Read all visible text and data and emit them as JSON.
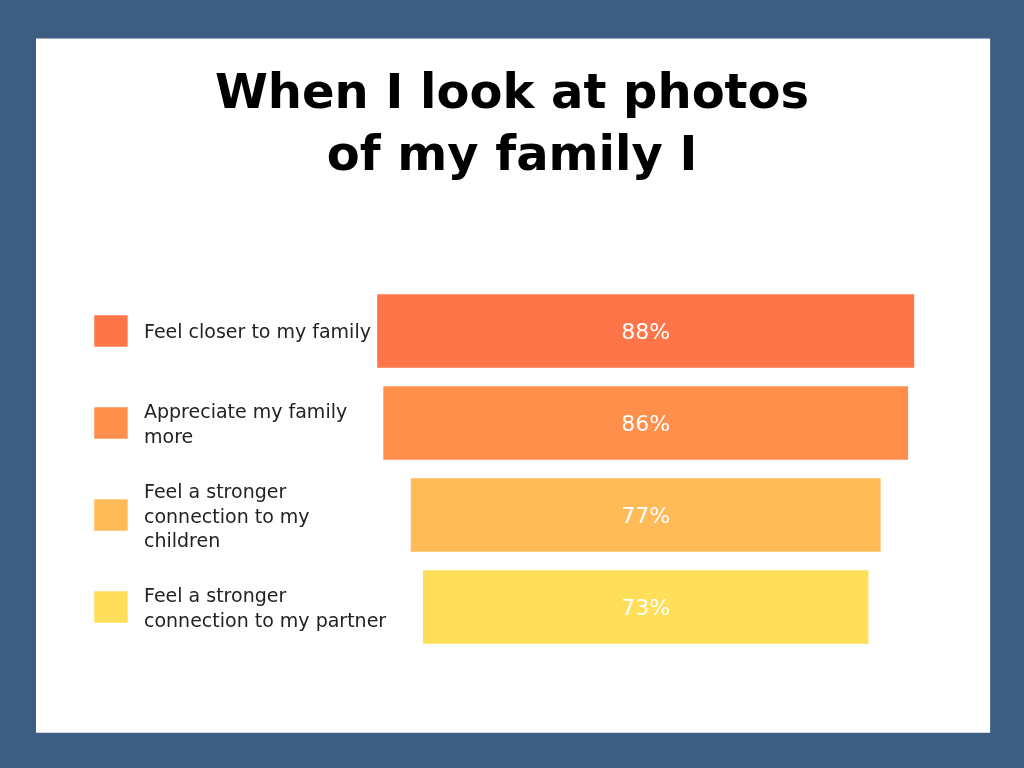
{
  "chart_data": {
    "type": "other",
    "title": "When I look at photos of my family I",
    "categories": [
      "Feel closer to my family",
      "Appreciate my family more",
      "Feel a stronger connection to my children",
      "Feel a stronger connection to my partner"
    ],
    "values": [
      88,
      86,
      77,
      73
    ],
    "colors": [
      "#ff754a",
      "#ff8f4b",
      "#ffbb58",
      "#ffde59"
    ],
    "value_labels": [
      "88%",
      "86%",
      "77%",
      "73%"
    ]
  }
}
